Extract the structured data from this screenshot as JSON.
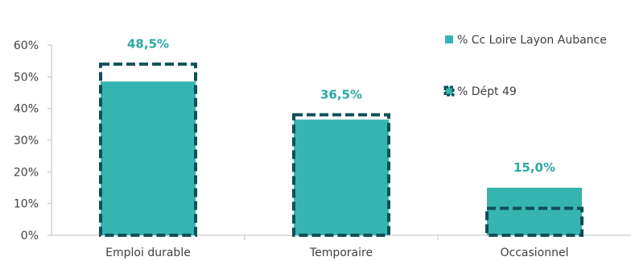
{
  "chart_data": {
    "type": "bar",
    "categories": [
      "Emploi durable",
      "Temporaire",
      "Occasionnel"
    ],
    "series": [
      {
        "name": "% Cc Loire Layon Aubance",
        "values": [
          48.5,
          36.5,
          15.0
        ],
        "style": "solid",
        "color": "#36b5b0"
      },
      {
        "name": "% Dépt 49",
        "values": [
          54.0,
          38.0,
          8.5
        ],
        "style": "dashed-outline",
        "color": "#0f4f58"
      }
    ],
    "data_labels": [
      "48,5%",
      "36,5%",
      "15,0%"
    ],
    "data_label_color": "#2aa8a3",
    "yticks": [
      "0%",
      "10%",
      "20%",
      "30%",
      "40%",
      "50%",
      "60%"
    ],
    "ylim": [
      0,
      60
    ],
    "legend_position": "top-right"
  }
}
